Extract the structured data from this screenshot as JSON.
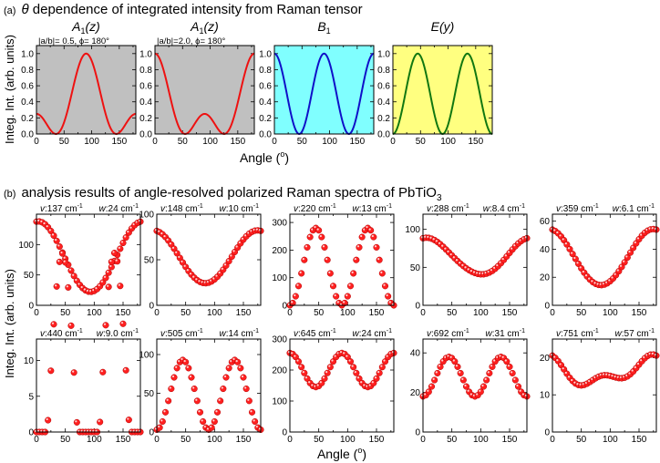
{
  "section_a": {
    "tag": "(a)",
    "theta": "θ",
    "title_rest": " dependence of integrated intensity from Raman tensor"
  },
  "section_b": {
    "tag": "(b)",
    "title_main": "analysis results of angle-resolved polarized Raman spectra of PbTiO",
    "title_sub": "3"
  },
  "colors": {
    "gray_bg": "#c0c0c0",
    "cyan_bg": "#80ffff",
    "yellow_bg": "#ffff80",
    "red": "#ee1111",
    "blue": "#1010c8",
    "green": "#117711",
    "marker": "#ff2020"
  },
  "chart_data": [
    {
      "id": "a-row",
      "type": "line",
      "xlabel": "Angle",
      "xlabel_unit": "o",
      "ylabel": "Integ. Int. (arb. units)",
      "xlim": [
        0,
        180
      ],
      "ylim": [
        0,
        1.1
      ],
      "xticks": [
        0,
        50,
        100,
        150
      ],
      "yticks": [
        0.0,
        0.2,
        0.4,
        0.6,
        0.8,
        1.0
      ],
      "ytick_labels": [
        "0.0",
        "0.2",
        "0.4",
        "0.6",
        "0.8",
        "1.0"
      ],
      "panels": [
        {
          "name": "A1z-a",
          "title": "A",
          "title_sub": "1",
          "title_arg": "(z)",
          "annotation": "|a/b|= 0.5, ϕ= 180°",
          "model": {
            "kind": "A1",
            "ratio": 0.5
          },
          "color": "red",
          "background": "gray_bg",
          "show_yticks": true
        },
        {
          "name": "A1z-b",
          "title": "A",
          "title_sub": "1",
          "title_arg": "(z)",
          "annotation": "|a/b|=2.0, ϕ= 180°",
          "model": {
            "kind": "A1",
            "ratio": 2.0
          },
          "color": "red",
          "background": "gray_bg",
          "show_yticks": true
        },
        {
          "name": "B1",
          "title": "B",
          "title_sub": "1",
          "title_arg": "",
          "annotation": "",
          "model": {
            "kind": "B1"
          },
          "color": "blue",
          "background": "cyan_bg",
          "show_yticks": true
        },
        {
          "name": "Ey",
          "title": "E",
          "title_sub": "",
          "title_arg": "(y)",
          "annotation": "",
          "model": {
            "kind": "E"
          },
          "color": "green",
          "background": "yellow_bg",
          "show_yticks": true
        }
      ]
    },
    {
      "id": "b-grid",
      "type": "scatter",
      "xlabel": "Angle",
      "xlabel_unit": "o",
      "ylabel": "Integ. Int. (arb. units)",
      "xlim": [
        0,
        180
      ],
      "xticks": [
        0,
        50,
        100,
        150
      ],
      "angles_step": 5,
      "panels": [
        {
          "name": "137",
          "v": "137",
          "w": "24",
          "ylim": [
            0,
            150
          ],
          "yticks": [
            0,
            50,
            100
          ],
          "model": {
            "C": 80,
            "B": 58,
            "A2": -0.12,
            "B2": 0,
            "A4": 0.12,
            "B4": 0.02
          }
        },
        {
          "name": "148",
          "v": "148",
          "w": "10",
          "ylim": [
            0,
            100
          ],
          "yticks": [
            0,
            50,
            100
          ],
          "model": {
            "C": 53,
            "B": 29,
            "A2": 0.2,
            "B2": 0.25,
            "A4": 0.25,
            "B4": 0.15
          }
        },
        {
          "name": "220",
          "v": "220",
          "w": "13",
          "ylim": [
            0,
            330
          ],
          "yticks": [
            0,
            100,
            200,
            300
          ],
          "model": {
            "C": 140,
            "B": 0,
            "A2": 0,
            "B2": 0,
            "A4": -140,
            "B4": 0
          }
        },
        {
          "name": "288",
          "v": "288",
          "w": "8.4",
          "ylim": [
            0,
            120
          ],
          "yticks": [
            0,
            50,
            100
          ],
          "model": {
            "C": 64,
            "B": 24,
            "A2": -0.3,
            "B2": 0.2,
            "A4": 1.5,
            "B4": 0.3
          }
        },
        {
          "name": "359",
          "v": "359",
          "w": "6.1",
          "ylim": [
            0,
            65
          ],
          "yticks": [
            0,
            20,
            40,
            60
          ],
          "model": {
            "C": 34,
            "B": 20,
            "A2": 0.2,
            "B2": 0.3,
            "A4": 0.4,
            "B4": 0.2
          }
        },
        {
          "name": "440",
          "v": "440",
          "w": "9.0",
          "ylim": [
            0,
            13
          ],
          "yticks": [
            0,
            5,
            10
          ],
          "model": {
            "C": 5,
            "B": 0.2,
            "A2": 0.2,
            "B2": 0.4,
            "A4": -20,
            "B4": 0
          }
        },
        {
          "name": "505",
          "v": "505",
          "w": "14",
          "ylim": [
            0,
            120
          ],
          "yticks": [
            0,
            50,
            100
          ],
          "model": {
            "C": 48,
            "B": 0,
            "A2": 0,
            "B2": 0,
            "A4": -45,
            "B4": 0
          }
        },
        {
          "name": "645",
          "v": "645",
          "w": "24",
          "ylim": [
            0,
            300
          ],
          "yticks": [
            0,
            100,
            200,
            300
          ],
          "model": {
            "C": 200,
            "B": 0,
            "A2": 0,
            "B2": 0,
            "A4": 55,
            "B4": 0
          }
        },
        {
          "name": "692",
          "v": "692",
          "w": "31",
          "ylim": [
            0,
            47
          ],
          "yticks": [
            0,
            20,
            40
          ],
          "model": {
            "C": 28,
            "B": 0,
            "A2": 0,
            "B2": 0,
            "A4": -10,
            "B4": 0
          }
        },
        {
          "name": "751",
          "v": "751",
          "w": "57",
          "ylim": [
            0,
            25
          ],
          "yticks": [
            0,
            10,
            20
          ],
          "model": {
            "C": 16,
            "B": 3,
            "A2": 0.5,
            "B2": 0.3,
            "A4": 2,
            "B4": 0.3
          }
        }
      ]
    }
  ]
}
